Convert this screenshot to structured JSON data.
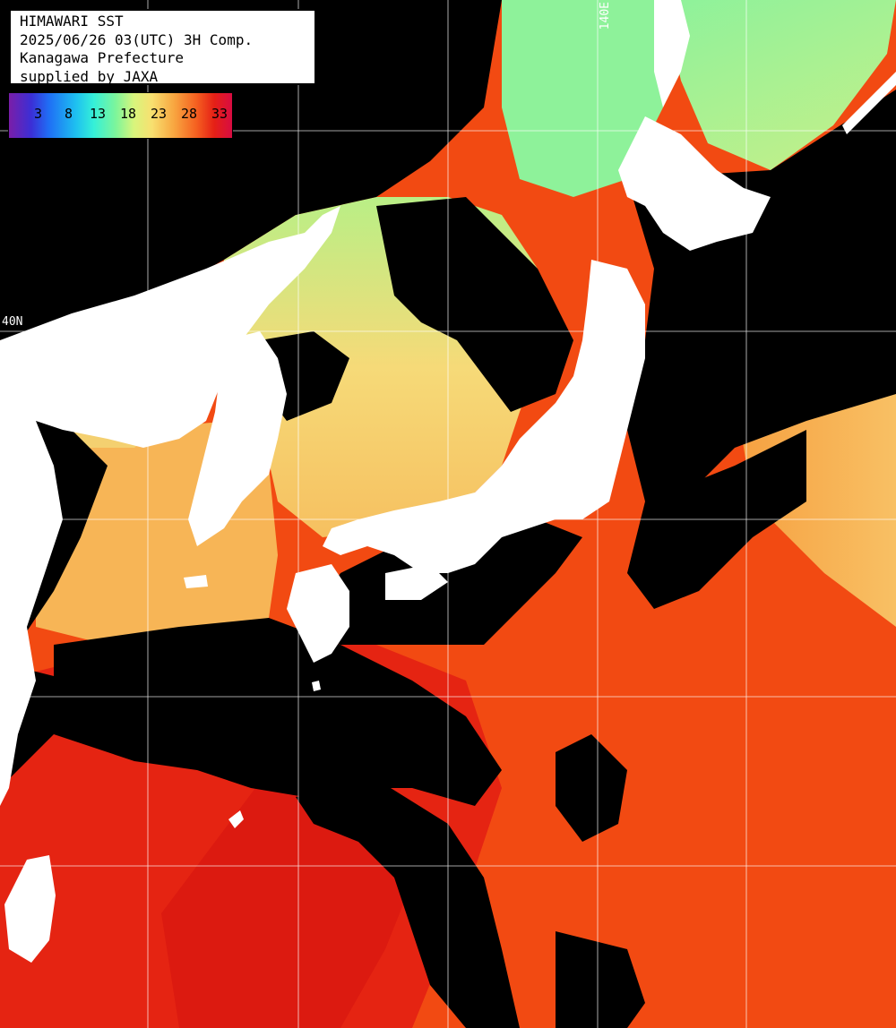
{
  "title": {
    "line1": "HIMAWARI SST",
    "line2": "2025/06/26 03(UTC) 3H Comp.",
    "line3": "Kanagawa Prefecture",
    "line4": "supplied by JAXA"
  },
  "colorbar": {
    "ticks": [
      "3",
      "8",
      "13",
      "18",
      "23",
      "28",
      "33"
    ]
  },
  "grid_labels": {
    "lat_40": "40N",
    "lon_140": "140E"
  },
  "colors": {
    "land": "#ffffff",
    "cloud_no_data": "#000000",
    "grid": "#ffffff",
    "warm_ocean": "#f24010",
    "hot_ocean": "#e21e10",
    "mild_sea": "#f6c860",
    "cool_sea": "#d8ef7a",
    "cold_sea": "#92f294"
  }
}
